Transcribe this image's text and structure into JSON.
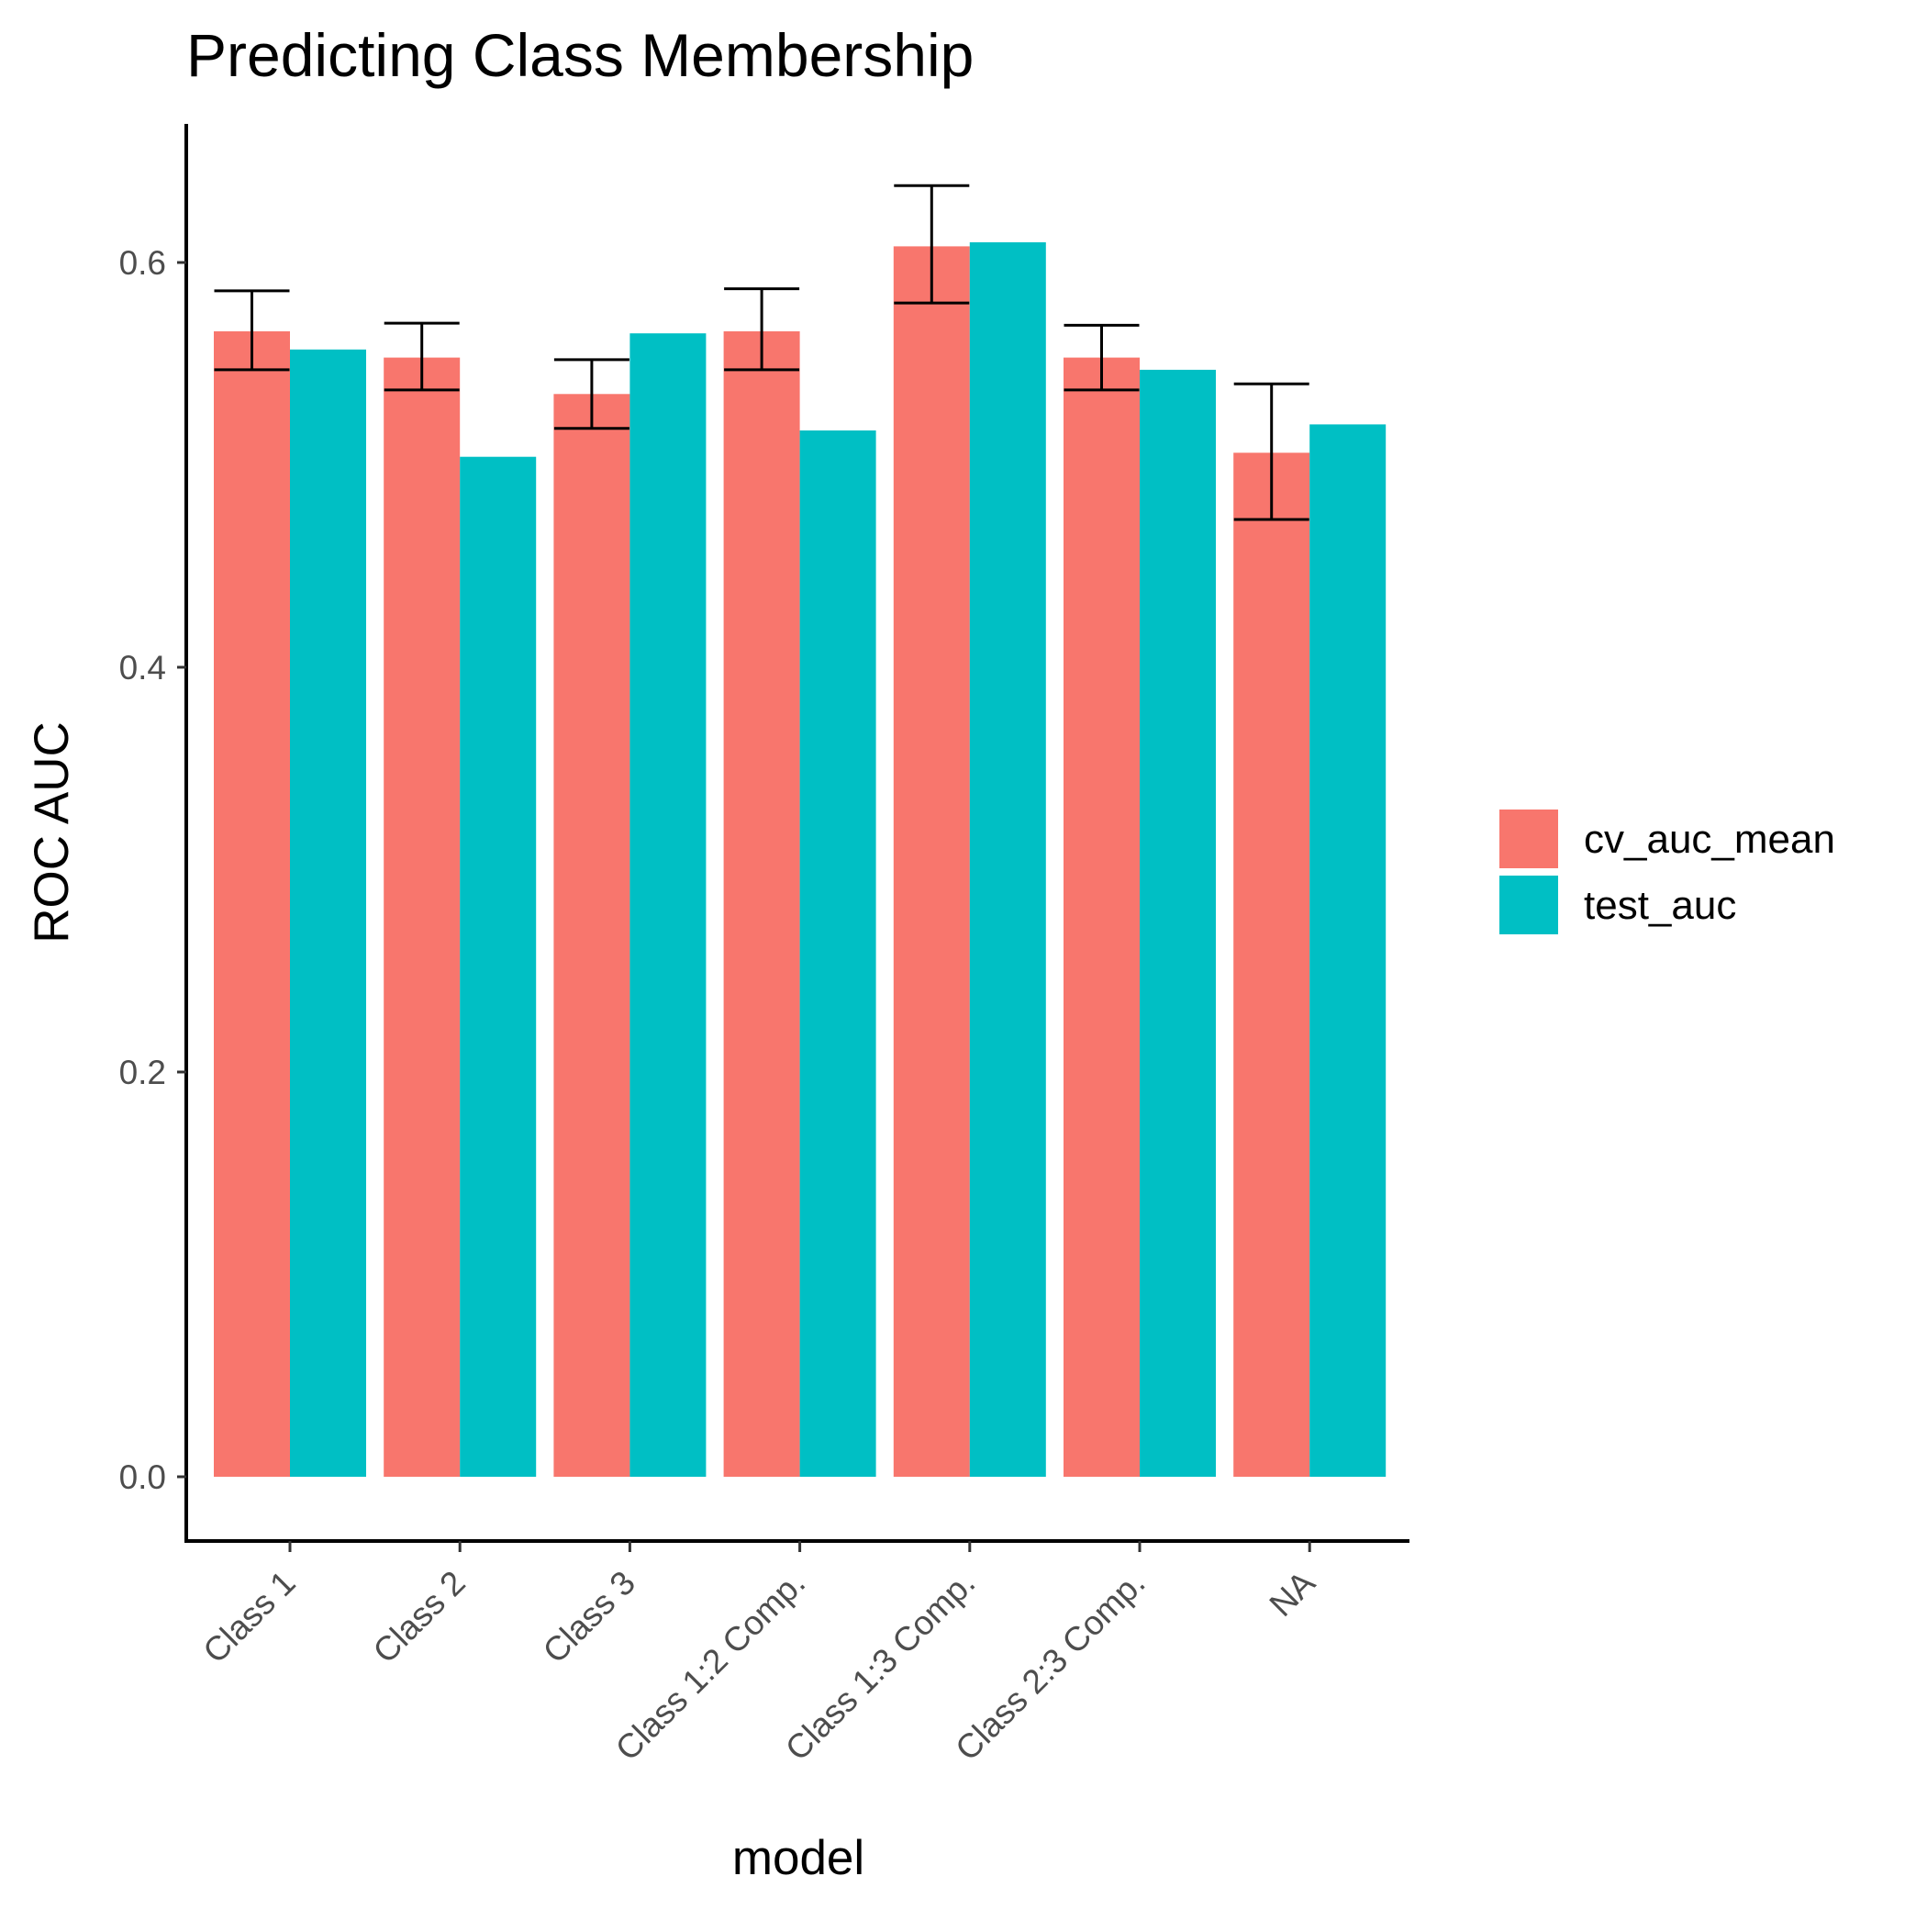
{
  "chart_data": {
    "type": "bar",
    "title": "Predicting Class Membership",
    "xlabel": "model",
    "ylabel": "ROC AUC",
    "categories": [
      "Class 1",
      "Class 2",
      "Class 3",
      "Class 1:2 Comp.",
      "Class 1:3 Comp.",
      "Class 2:3 Comp.",
      "NA"
    ],
    "series": [
      {
        "name": "cv_auc_mean",
        "color": "#F8766D",
        "values": [
          0.566,
          0.553,
          0.535,
          0.566,
          0.608,
          0.553,
          0.506
        ],
        "error_bars": {
          "lower": [
            0.547,
            0.537,
            0.518,
            0.547,
            0.58,
            0.537,
            0.473
          ],
          "upper": [
            0.586,
            0.57,
            0.552,
            0.587,
            0.638,
            0.569,
            0.54
          ]
        }
      },
      {
        "name": "test_auc",
        "color": "#00BFC4",
        "values": [
          0.557,
          0.504,
          0.565,
          0.517,
          0.61,
          0.547,
          0.52
        ]
      }
    ],
    "ylim": [
      -0.03,
      0.667
    ],
    "yticks": [
      "0.0",
      "0.2",
      "0.4",
      "0.6"
    ],
    "grid": false,
    "legend_position": "right"
  }
}
